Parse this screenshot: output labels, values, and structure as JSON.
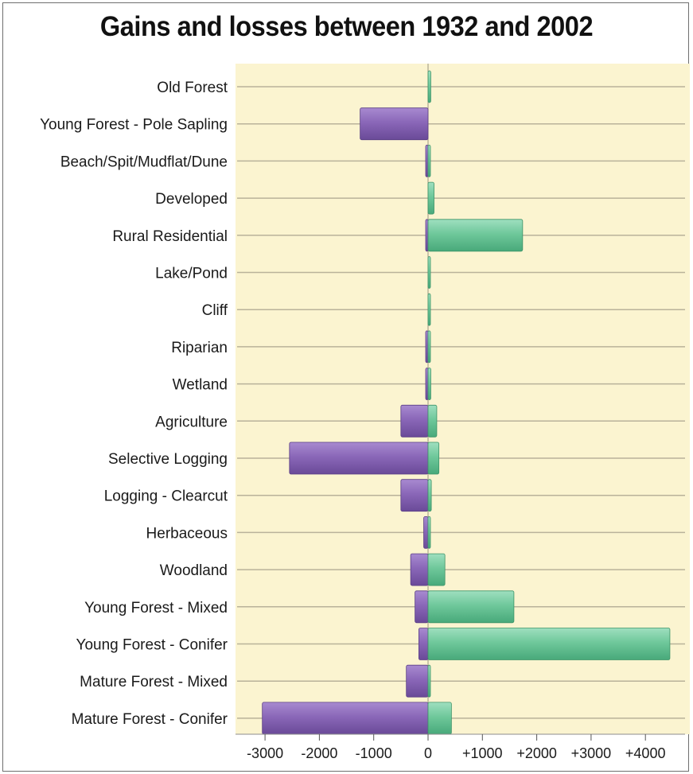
{
  "chart_data": {
    "type": "bar",
    "orientation": "horizontal",
    "stacked": false,
    "title": "Gains and losses between 1932 and 2002",
    "xlabel": "",
    "ylabel": "",
    "xlim": [
      -3400,
      4800
    ],
    "grid": true,
    "categories": [
      "Old Forest",
      "Young Forest - Pole Sapling",
      "Beach/Spit/Mudflat/Dune",
      "Developed",
      "Rural Residential",
      "Lake/Pond",
      "Cliff",
      "Riparian",
      "Wetland",
      "Agriculture",
      "Selective Logging",
      "Logging - Clearcut",
      "Herbaceous",
      "Woodland",
      "Young Forest - Mixed",
      "Young Forest - Conifer",
      "Mature Forest - Mixed",
      "Mature Forest - Conifer"
    ],
    "series": [
      {
        "key": "losses",
        "color": "#8a67b8",
        "values": [
          0,
          -1250,
          -20,
          0,
          -30,
          0,
          0,
          -20,
          -20,
          -500,
          -2550,
          -500,
          -80,
          -320,
          -240,
          -170,
          -400,
          -3050
        ]
      },
      {
        "key": "gains",
        "color": "#6fc89b",
        "values": [
          50,
          0,
          15,
          110,
          1740,
          40,
          20,
          30,
          50,
          160,
          200,
          60,
          40,
          310,
          1580,
          4450,
          40,
          430
        ]
      }
    ],
    "x_tick_values": [
      -3000,
      -2000,
      -1000,
      0,
      1000,
      2000,
      3000,
      4000
    ],
    "x_tick_labels": [
      "-3000",
      "-2000",
      "-1000",
      "0",
      "+1000",
      "+2000",
      "+3000",
      "+4000"
    ],
    "background_color": "#fbf4d0",
    "grid_color": "#b9b29a"
  }
}
